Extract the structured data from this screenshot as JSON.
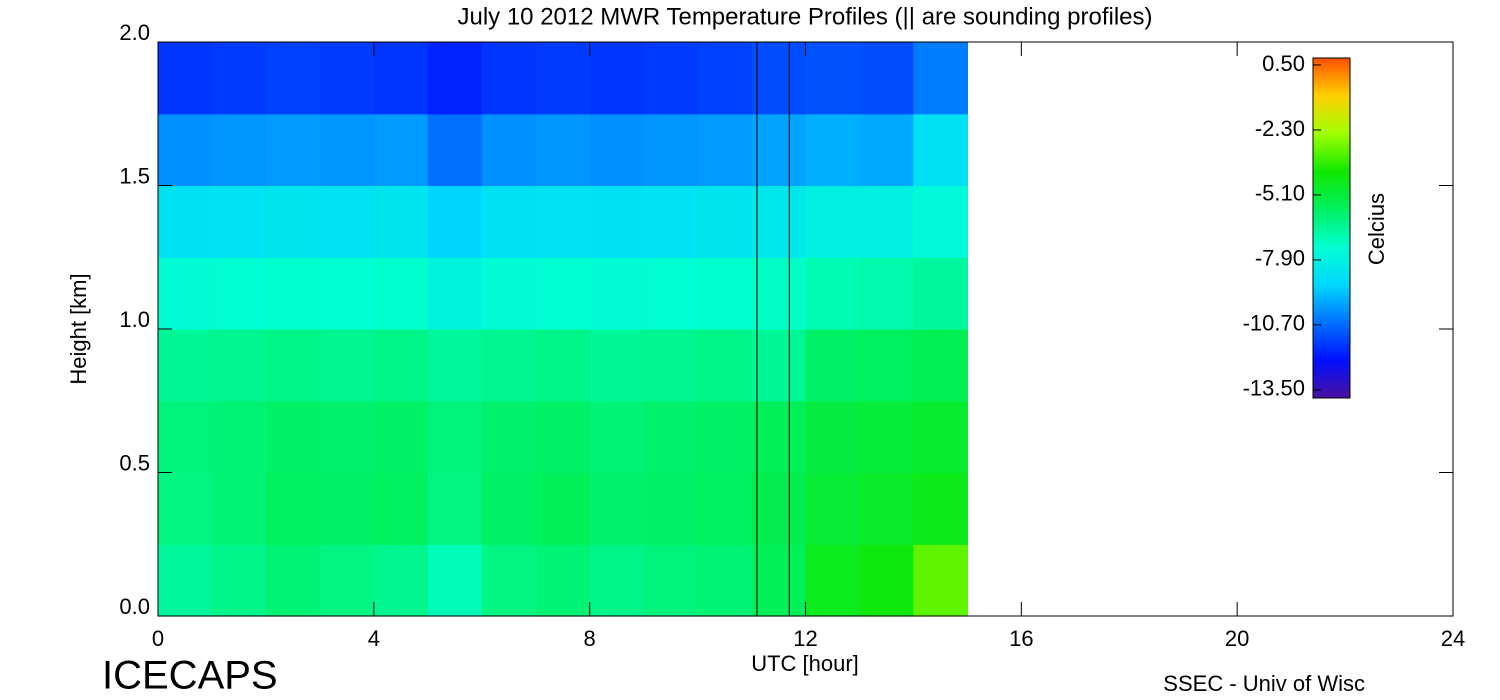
{
  "chart_data": {
    "type": "heatmap",
    "title": "July 10 2012 MWR Temperature Profiles (|| are sounding profiles)",
    "x_label": "UTC [hour]",
    "y_label": "Height [km]",
    "colorbar_label": "Celcius",
    "left_footer": "ICECAPS",
    "right_footer": "SSEC - Univ of Wisc",
    "xlim": [
      0,
      24
    ],
    "ylim": [
      0,
      2
    ],
    "xticks": [
      0,
      4,
      8,
      12,
      16,
      20,
      24
    ],
    "yticks": [
      {
        "value": 0,
        "label": "0.0"
      },
      0.5,
      {
        "value": 1,
        "label": "1.0"
      },
      1.5,
      {
        "value": 2,
        "label": "2.0"
      }
    ],
    "x": [
      0.5,
      1.5,
      2.5,
      3.5,
      4.5,
      5.5,
      6.5,
      7.5,
      8.5,
      9.5,
      10.5,
      11.5,
      12.5,
      13.5,
      14.5
    ],
    "y": [
      0.125,
      0.375,
      0.625,
      0.875,
      1.125,
      1.375,
      1.625,
      1.875
    ],
    "z": [
      [
        -6.6,
        -6.3,
        -6.0,
        -6.2,
        -6.4,
        -7.0,
        -6.2,
        -6.0,
        -6.3,
        -6.1,
        -6.0,
        -5.6,
        -4.6,
        -4.3,
        -3.2
      ],
      [
        -6.2,
        -6.0,
        -5.7,
        -5.8,
        -5.7,
        -6.2,
        -5.8,
        -5.6,
        -5.9,
        -5.8,
        -5.7,
        -5.4,
        -5.0,
        -4.8,
        -4.5
      ],
      [
        -6.1,
        -6.0,
        -5.8,
        -5.9,
        -5.8,
        -6.1,
        -5.9,
        -5.8,
        -6.0,
        -5.9,
        -5.8,
        -5.6,
        -5.2,
        -5.1,
        -4.9
      ],
      [
        -6.5,
        -6.4,
        -6.3,
        -6.4,
        -6.3,
        -6.6,
        -6.4,
        -6.3,
        -6.5,
        -6.4,
        -6.3,
        -6.5,
        -5.8,
        -5.7,
        -5.5
      ],
      [
        -7.5,
        -7.4,
        -7.3,
        -7.4,
        -7.3,
        -7.8,
        -7.5,
        -7.4,
        -7.5,
        -7.4,
        -7.3,
        -7.2,
        -6.9,
        -6.8,
        -6.6
      ],
      [
        -8.6,
        -8.5,
        -8.4,
        -8.5,
        -8.4,
        -9.0,
        -8.6,
        -8.5,
        -8.6,
        -8.5,
        -8.4,
        -8.3,
        -8.0,
        -8.0,
        -7.6
      ],
      [
        -10.1,
        -10.0,
        -9.9,
        -10.0,
        -9.9,
        -10.6,
        -10.1,
        -10.0,
        -10.1,
        -10.0,
        -9.9,
        -9.8,
        -9.6,
        -9.7,
        -8.6
      ],
      [
        -11.6,
        -11.5,
        -11.4,
        -11.5,
        -11.6,
        -11.9,
        -11.6,
        -11.5,
        -11.6,
        -11.5,
        -11.4,
        -11.2,
        -11.1,
        -11.2,
        -10.4
      ]
    ],
    "sounding_lines": [
      11.1,
      11.7
    ],
    "clim": [
      -13.85,
      0.8
    ],
    "cticks": [
      {
        "value": 0.5,
        "label": "0.50"
      },
      {
        "value": -2.3,
        "label": "-2.30"
      },
      {
        "value": -5.1,
        "label": "-5.10"
      },
      {
        "value": -7.9,
        "label": "-7.90"
      },
      {
        "value": -10.7,
        "label": "-10.70"
      },
      {
        "value": -13.5,
        "label": "-13.50"
      }
    ],
    "colormap": [
      "#4a10a0",
      "#0010ff",
      "#0070ff",
      "#00d8ff",
      "#00ffd0",
      "#00f060",
      "#10e800",
      "#a0ff00",
      "#ffd000",
      "#ff5000"
    ]
  }
}
